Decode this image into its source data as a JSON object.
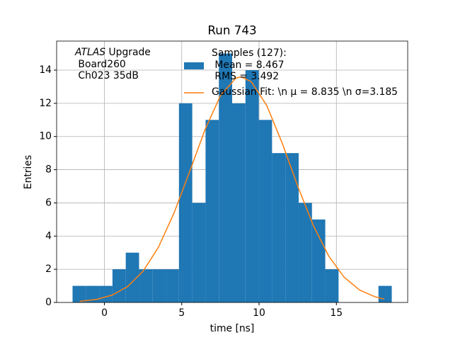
{
  "chart_data": {
    "type": "histogram",
    "title": "Run 743",
    "xlabel": "time [ns]",
    "ylabel": "Entries",
    "annotation": [
      "ATLAS",
      "Upgrade",
      "Board260",
      "Ch023 35dB"
    ],
    "series": [
      {
        "name": "Samples (127):\n Mean = 8.467\n RMS = 3.492",
        "color": "#1f77b4",
        "type": "histogram",
        "bins": [
          -2.06,
          -1.2,
          -0.34,
          0.52,
          1.38,
          2.24,
          3.1,
          3.96,
          4.82,
          5.68,
          6.54,
          7.4,
          8.26,
          9.12,
          9.98,
          10.84,
          11.7,
          12.56,
          13.42,
          14.28,
          15.14,
          16.0,
          16.86,
          17.72,
          18.58
        ],
        "values": [
          1,
          1,
          1,
          2,
          3,
          2,
          2,
          2,
          12,
          6,
          11,
          15,
          12,
          14,
          11,
          9,
          9,
          6,
          5,
          2,
          0,
          0,
          0,
          1
        ]
      },
      {
        "name": "Gaussian Fit: \\n μ = 8.835 \\n σ=3.185",
        "color": "#ff7f0e",
        "type": "line",
        "x": [
          -1.6,
          -0.5,
          0.5,
          1.5,
          2.5,
          3.5,
          4.5,
          5.5,
          6.5,
          7.5,
          8.5,
          8.835,
          9.5,
          10.5,
          11.5,
          12.5,
          13.5,
          14.5,
          15.5,
          16.5,
          17.5,
          18.1
        ],
        "values": [
          0.064,
          0.186,
          0.443,
          0.959,
          1.88,
          3.34,
          5.39,
          7.86,
          10.4,
          12.46,
          13.52,
          13.6,
          13.3,
          11.86,
          9.59,
          7.01,
          4.65,
          2.8,
          1.52,
          0.75,
          0.34,
          0.2
        ]
      }
    ],
    "xlim": [
      -3.09,
      19.61
    ],
    "ylim": [
      0,
      15.75
    ],
    "xticks": [
      0,
      5,
      10,
      15
    ],
    "yticks": [
      0,
      2,
      4,
      6,
      8,
      10,
      12,
      14
    ],
    "grid": true
  }
}
